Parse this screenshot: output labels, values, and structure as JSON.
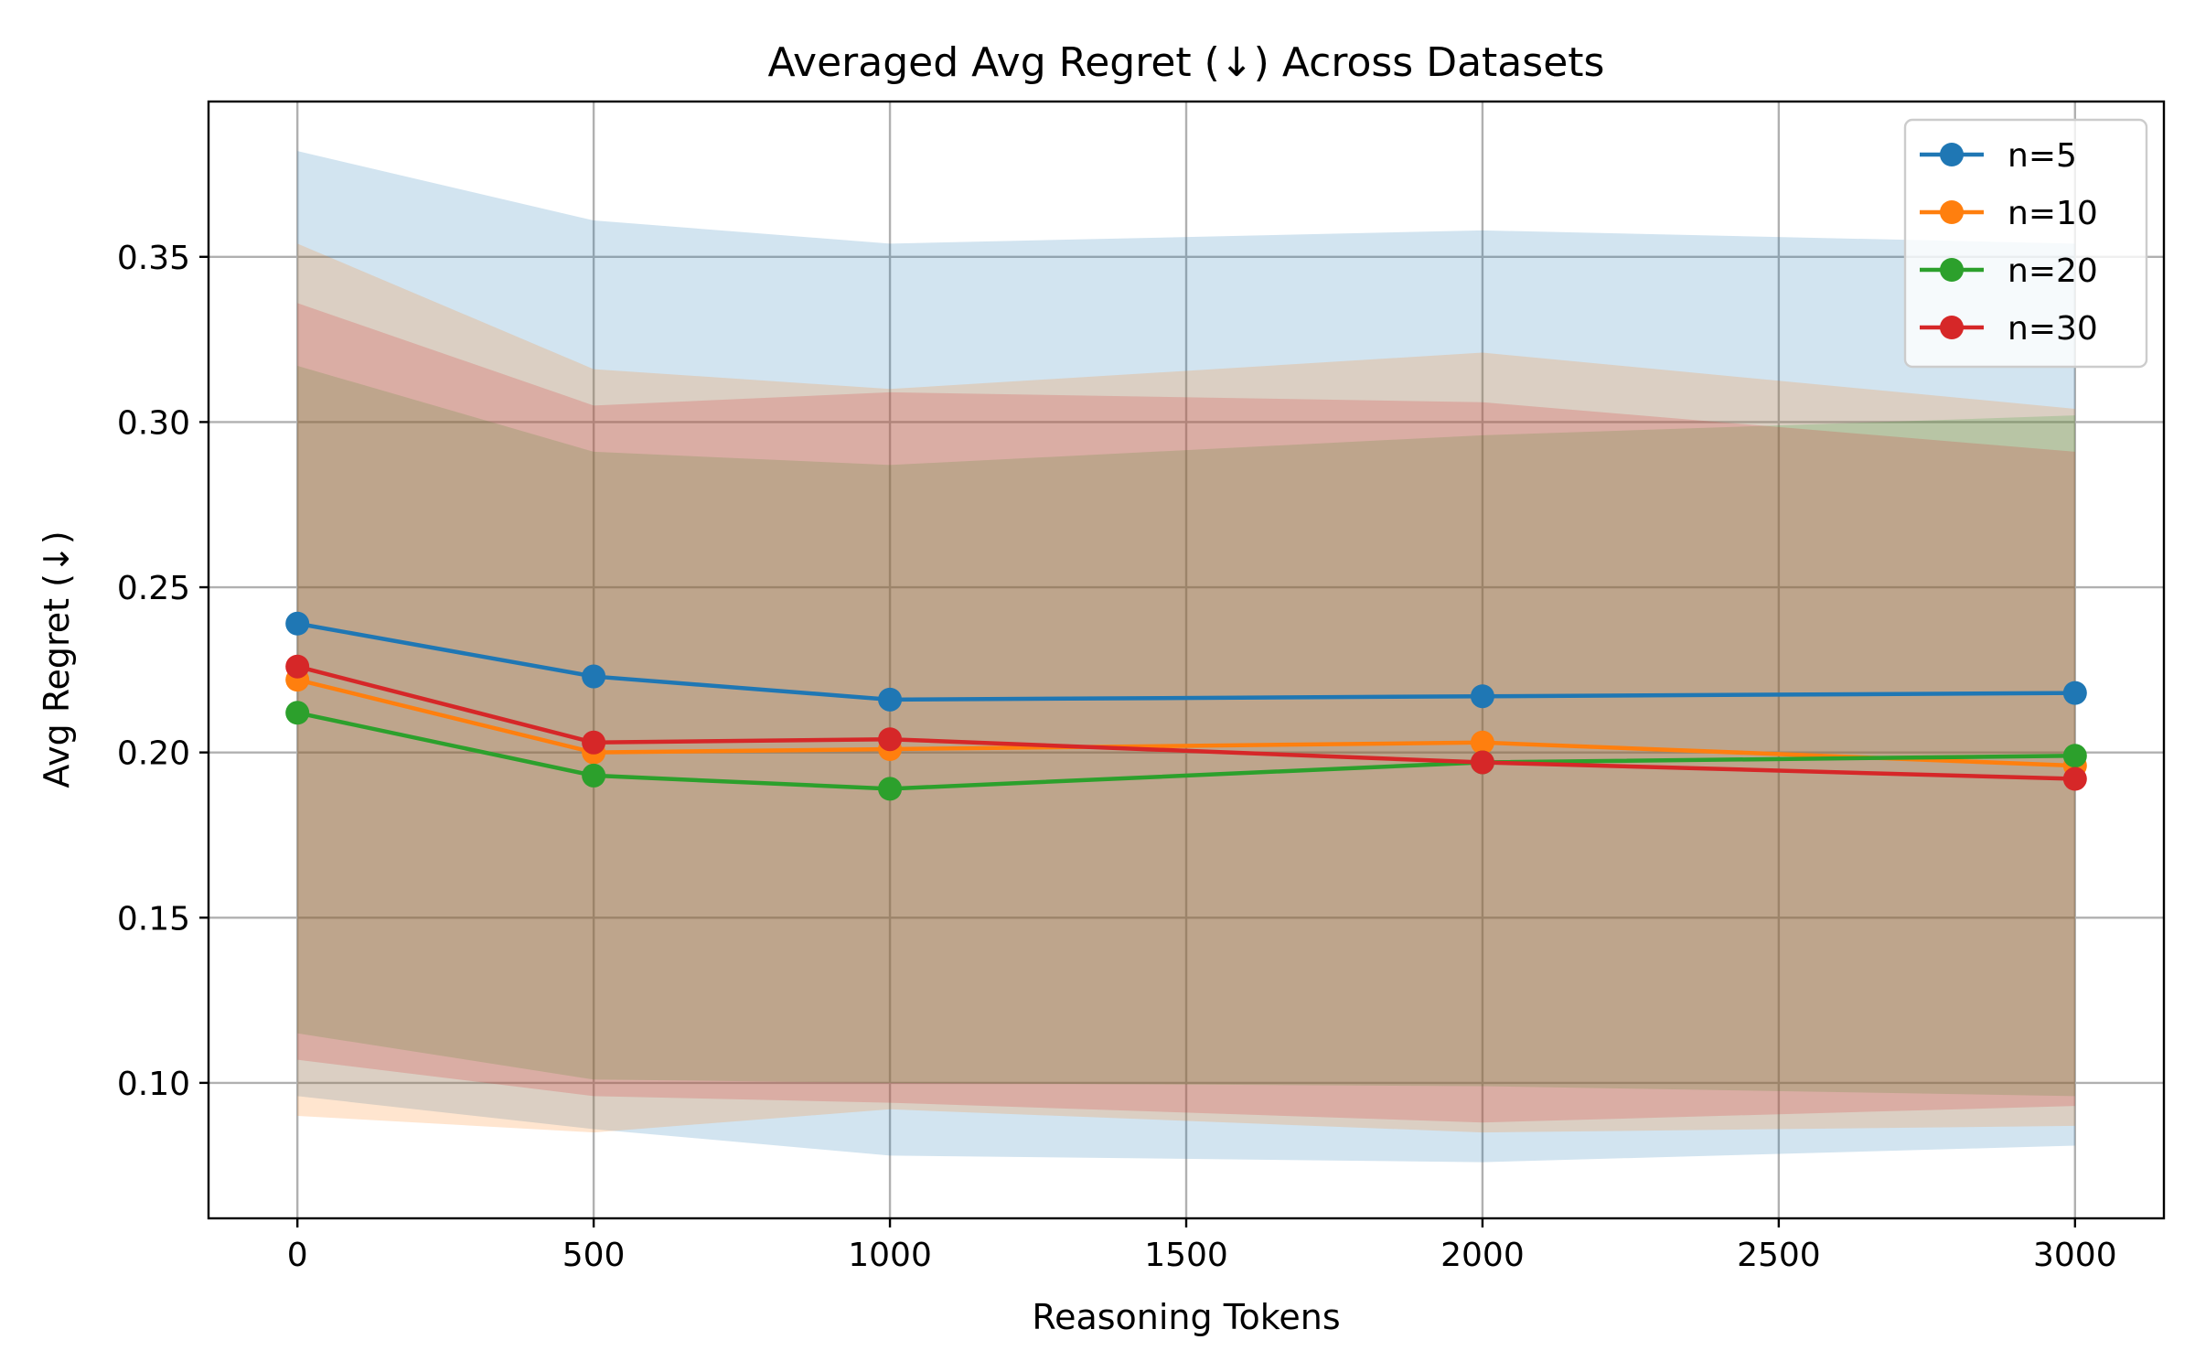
{
  "chart_data": {
    "type": "line",
    "title": "Averaged Avg Regret (↓) Across Datasets",
    "xlabel": "Reasoning Tokens",
    "ylabel": "Avg Regret (↓)",
    "xlim": [
      -150,
      3150
    ],
    "ylim": [
      0.059,
      0.397
    ],
    "xticks": [
      0,
      500,
      1000,
      1500,
      2000,
      2500,
      3000
    ],
    "yticks": [
      0.1,
      0.15,
      0.2,
      0.25,
      0.3,
      0.35
    ],
    "xtick_labels": [
      "0",
      "500",
      "1000",
      "1500",
      "2000",
      "2500",
      "3000"
    ],
    "ytick_labels": [
      "0.10",
      "0.15",
      "0.20",
      "0.25",
      "0.30",
      "0.35"
    ],
    "grid": true,
    "legend_position": "top-right",
    "x": [
      0,
      500,
      1000,
      2000,
      3000
    ],
    "series": [
      {
        "name": "n=5",
        "color": "#1f77b4",
        "values": [
          0.239,
          0.223,
          0.216,
          0.217,
          0.218
        ],
        "upper": [
          0.382,
          0.361,
          0.354,
          0.358,
          0.354
        ],
        "lower": [
          0.096,
          0.086,
          0.078,
          0.076,
          0.081
        ]
      },
      {
        "name": "n=10",
        "color": "#ff7f0e",
        "values": [
          0.222,
          0.2,
          0.201,
          0.203,
          0.196
        ],
        "upper": [
          0.354,
          0.316,
          0.31,
          0.321,
          0.304
        ],
        "lower": [
          0.09,
          0.085,
          0.092,
          0.085,
          0.087
        ]
      },
      {
        "name": "n=20",
        "color": "#2ca02c",
        "values": [
          0.212,
          0.193,
          0.189,
          0.197,
          0.199
        ],
        "upper": [
          0.317,
          0.291,
          0.287,
          0.296,
          0.302
        ],
        "lower": [
          0.115,
          0.101,
          0.1,
          0.099,
          0.096
        ]
      },
      {
        "name": "n=30",
        "color": "#d62728",
        "values": [
          0.226,
          0.203,
          0.204,
          0.197,
          0.192
        ],
        "upper": [
          0.336,
          0.305,
          0.309,
          0.306,
          0.291
        ],
        "lower": [
          0.107,
          0.096,
          0.094,
          0.088,
          0.093
        ]
      }
    ]
  }
}
